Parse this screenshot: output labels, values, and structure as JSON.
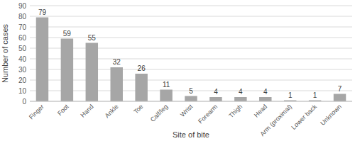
{
  "chart_data": {
    "type": "bar",
    "x_label": "Site of bite",
    "y_label": "Number of cases",
    "categories": [
      "Finger",
      "Foot",
      "Hand",
      "Ankle",
      "Toe",
      "Calf/leg",
      "Wrist",
      "Forearm",
      "Thigh",
      "Head",
      "Arm (proximal)",
      "Lower back",
      "Unknown"
    ],
    "values": [
      79,
      59,
      55,
      32,
      26,
      11,
      5,
      4,
      4,
      4,
      1,
      1,
      7
    ],
    "color": "#a6a6a6",
    "ylim": [
      0,
      90
    ],
    "yticks": [
      0,
      10,
      20,
      30,
      40,
      50,
      60,
      70,
      80,
      90
    ],
    "grid": true,
    "data_labels": true
  }
}
